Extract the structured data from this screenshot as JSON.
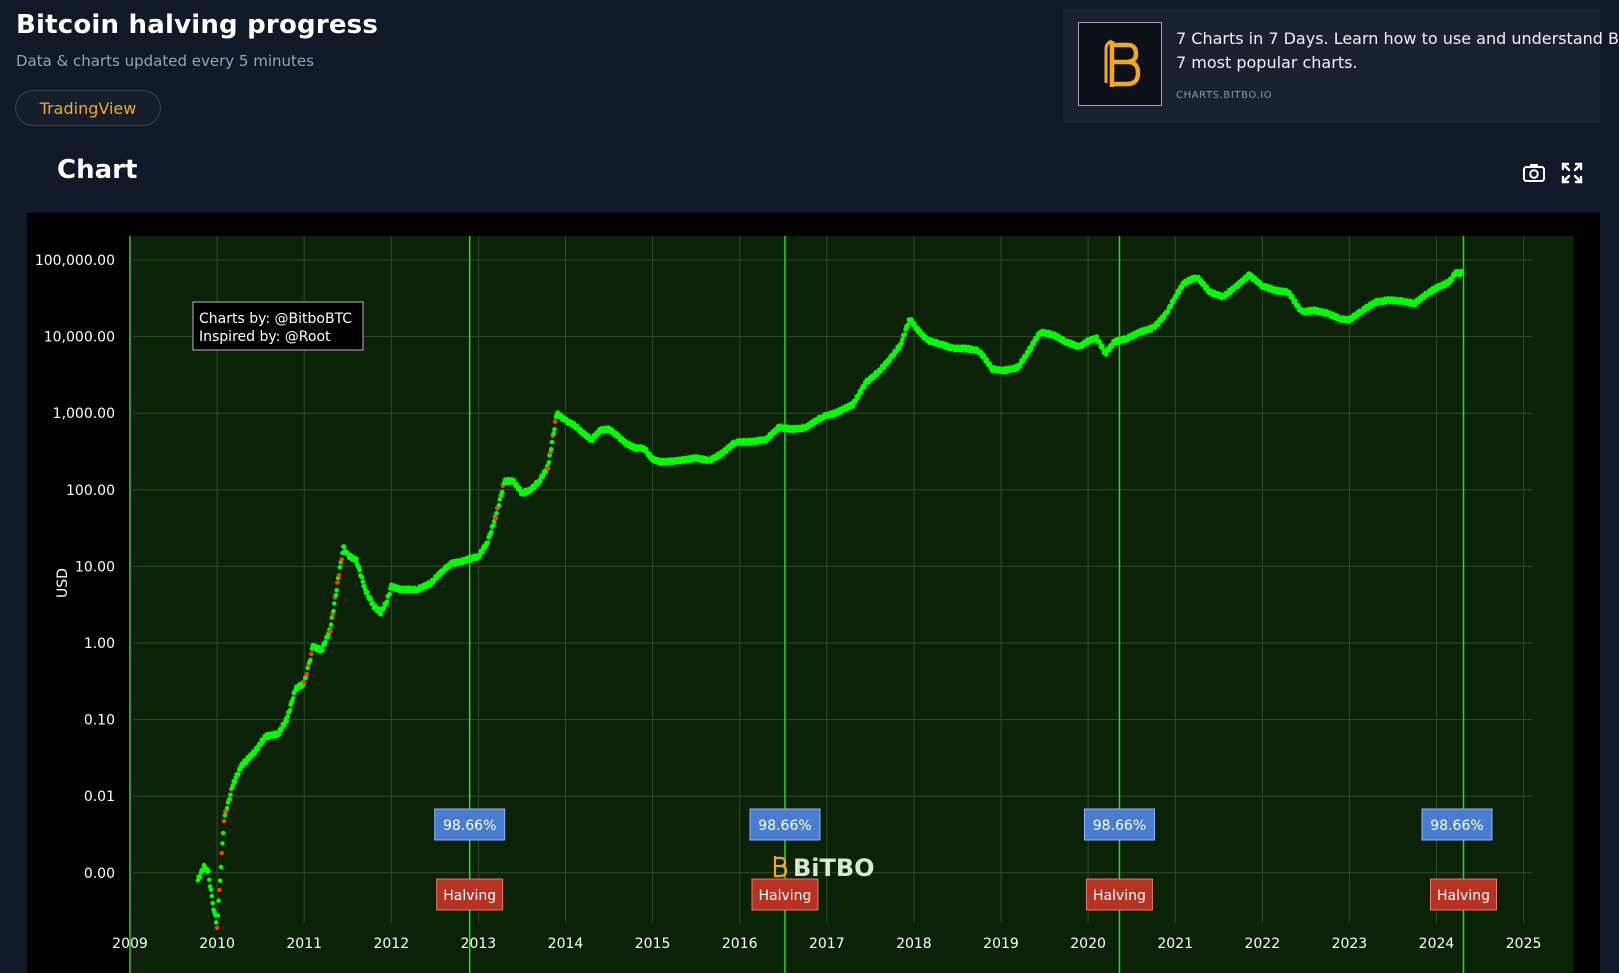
{
  "header": {
    "title": "Bitcoin halving progress",
    "subtitle": "Data & charts updated every 5 minutes",
    "tradingview_label": "TradingView"
  },
  "promo": {
    "line1": "7 Charts in 7 Days. Learn how to use and understand B",
    "line2": "7 most popular charts.",
    "link": "CHARTS.BITBO.IO"
  },
  "section": {
    "title": "Chart"
  },
  "icons": {
    "camera": "camera-icon",
    "fullscreen": "fullscreen-icon",
    "logo": "bitbo-logo-icon"
  },
  "colors": {
    "background": "#111827",
    "accent": "#f5a623",
    "plot_bg": "#0b2209",
    "line_green": "#00ff00",
    "line_red": "#ff3a00",
    "badge_blue": "#4a7cd0",
    "badge_red": "#b83222"
  },
  "chart_data": {
    "type": "scatter",
    "ylabel": "USD",
    "yscale": "log",
    "x_ticks": [
      "2009",
      "2010",
      "2011",
      "2012",
      "2013",
      "2014",
      "2015",
      "2016",
      "2017",
      "2018",
      "2019",
      "2020",
      "2021",
      "2022",
      "2023",
      "2024",
      "2025"
    ],
    "y_ticks": [
      "0.00",
      "0.01",
      "0.10",
      "1.00",
      "10.00",
      "100.00",
      "1,000.00",
      "10,000.00",
      "100,000.00"
    ],
    "xlim": [
      2009.0,
      2025.0
    ],
    "halving_dates": [
      2012.9,
      2016.52,
      2020.36,
      2024.31
    ],
    "halving_label": "Halving",
    "progress_label": "98.66%",
    "annotation": [
      "Charts by: @BitboBTC",
      "Inspired by: @Root"
    ],
    "watermark": "BiTBO",
    "series": [
      {
        "points": [
          [
            2009.78,
            0.0008
          ],
          [
            2009.85,
            0.0012
          ],
          [
            2009.9,
            0.001
          ],
          [
            2009.95,
            0.0004
          ],
          [
            2010.0,
            0.0002
          ],
          [
            2010.08,
            0.005
          ],
          [
            2010.18,
            0.014
          ],
          [
            2010.28,
            0.025
          ],
          [
            2010.45,
            0.04
          ],
          [
            2010.55,
            0.06
          ],
          [
            2010.7,
            0.065
          ],
          [
            2010.8,
            0.1
          ],
          [
            2010.9,
            0.25
          ],
          [
            2011.0,
            0.3
          ],
          [
            2011.05,
            0.5
          ],
          [
            2011.1,
            0.9
          ],
          [
            2011.2,
            0.8
          ],
          [
            2011.3,
            1.5
          ],
          [
            2011.4,
            8.0
          ],
          [
            2011.45,
            18.0
          ],
          [
            2011.5,
            14.0
          ],
          [
            2011.6,
            12.0
          ],
          [
            2011.7,
            5.0
          ],
          [
            2011.8,
            3.0
          ],
          [
            2011.88,
            2.5
          ],
          [
            2011.95,
            3.5
          ],
          [
            2012.0,
            5.5
          ],
          [
            2012.1,
            5.0
          ],
          [
            2012.3,
            5.0
          ],
          [
            2012.45,
            6.0
          ],
          [
            2012.6,
            9.0
          ],
          [
            2012.7,
            11.0
          ],
          [
            2012.8,
            11.5
          ],
          [
            2012.9,
            12.5
          ],
          [
            2013.0,
            13.5
          ],
          [
            2013.1,
            20.0
          ],
          [
            2013.2,
            45.0
          ],
          [
            2013.3,
            130.0
          ],
          [
            2013.4,
            130.0
          ],
          [
            2013.5,
            90.0
          ],
          [
            2013.6,
            100.0
          ],
          [
            2013.7,
            130.0
          ],
          [
            2013.8,
            200.0
          ],
          [
            2013.9,
            1000.0
          ],
          [
            2014.0,
            800.0
          ],
          [
            2014.1,
            700.0
          ],
          [
            2014.2,
            550.0
          ],
          [
            2014.3,
            450.0
          ],
          [
            2014.4,
            600.0
          ],
          [
            2014.5,
            620.0
          ],
          [
            2014.6,
            500.0
          ],
          [
            2014.7,
            400.0
          ],
          [
            2014.8,
            350.0
          ],
          [
            2014.9,
            350.0
          ],
          [
            2015.0,
            250.0
          ],
          [
            2015.1,
            230.0
          ],
          [
            2015.3,
            240.0
          ],
          [
            2015.5,
            260.0
          ],
          [
            2015.65,
            240.0
          ],
          [
            2015.8,
            300.0
          ],
          [
            2015.95,
            420.0
          ],
          [
            2016.1,
            420.0
          ],
          [
            2016.3,
            450.0
          ],
          [
            2016.45,
            650.0
          ],
          [
            2016.6,
            620.0
          ],
          [
            2016.75,
            640.0
          ],
          [
            2016.95,
            900.0
          ],
          [
            2017.1,
            1000.0
          ],
          [
            2017.3,
            1300.0
          ],
          [
            2017.45,
            2500.0
          ],
          [
            2017.6,
            3500.0
          ],
          [
            2017.75,
            5500.0
          ],
          [
            2017.85,
            8000.0
          ],
          [
            2017.95,
            17000.0
          ],
          [
            2018.05,
            12000.0
          ],
          [
            2018.15,
            9000.0
          ],
          [
            2018.3,
            8000.0
          ],
          [
            2018.45,
            7000.0
          ],
          [
            2018.6,
            7000.0
          ],
          [
            2018.75,
            6500.0
          ],
          [
            2018.9,
            3800.0
          ],
          [
            2019.0,
            3600.0
          ],
          [
            2019.1,
            3700.0
          ],
          [
            2019.2,
            4000.0
          ],
          [
            2019.3,
            6000.0
          ],
          [
            2019.45,
            11500.0
          ],
          [
            2019.6,
            10500.0
          ],
          [
            2019.75,
            8500.0
          ],
          [
            2019.9,
            7300.0
          ],
          [
            2020.0,
            8800.0
          ],
          [
            2020.1,
            9500.0
          ],
          [
            2020.2,
            6000.0
          ],
          [
            2020.3,
            8500.0
          ],
          [
            2020.45,
            9500.0
          ],
          [
            2020.6,
            11500.0
          ],
          [
            2020.75,
            13000.0
          ],
          [
            2020.9,
            20000.0
          ],
          [
            2021.0,
            33000.0
          ],
          [
            2021.1,
            50000.0
          ],
          [
            2021.25,
            60000.0
          ],
          [
            2021.4,
            38000.0
          ],
          [
            2021.55,
            33000.0
          ],
          [
            2021.7,
            45000.0
          ],
          [
            2021.85,
            64000.0
          ],
          [
            2022.0,
            46000.0
          ],
          [
            2022.15,
            40000.0
          ],
          [
            2022.3,
            38000.0
          ],
          [
            2022.45,
            21000.0
          ],
          [
            2022.6,
            22000.0
          ],
          [
            2022.75,
            20000.0
          ],
          [
            2022.9,
            17000.0
          ],
          [
            2023.0,
            16500.0
          ],
          [
            2023.15,
            22000.0
          ],
          [
            2023.3,
            28000.0
          ],
          [
            2023.45,
            30000.0
          ],
          [
            2023.6,
            29000.0
          ],
          [
            2023.75,
            27000.0
          ],
          [
            2023.9,
            37000.0
          ],
          [
            2024.0,
            43000.0
          ],
          [
            2024.15,
            52000.0
          ],
          [
            2024.22,
            68000.0
          ],
          [
            2024.3,
            67000.0
          ]
        ]
      }
    ]
  }
}
